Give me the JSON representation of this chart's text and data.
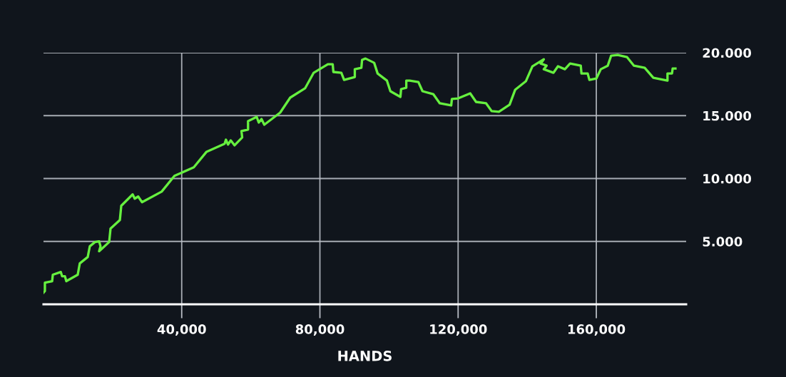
{
  "chart_data": {
    "type": "line",
    "xlabel": "HANDS",
    "xlim": [
      0,
      186000
    ],
    "xticks": [
      {
        "value": 40000,
        "label": "40,000"
      },
      {
        "value": 80000,
        "label": "80,000"
      },
      {
        "value": 120000,
        "label": "120,000"
      },
      {
        "value": 160000,
        "label": "160,000"
      }
    ],
    "ylim": [
      0,
      20
    ],
    "yticks": [
      {
        "value": 5,
        "label": "5.000"
      },
      {
        "value": 10,
        "label": "10.000"
      },
      {
        "value": 15,
        "label": "15.000"
      },
      {
        "value": 20,
        "label": "20.000"
      }
    ],
    "grid": true,
    "marker": "none",
    "line_style": "solid",
    "series": [
      {
        "color": "#66f03f",
        "x": [
          0,
          400,
          400,
          2500,
          2700,
          5000,
          5400,
          6200,
          6600,
          9900,
          10500,
          12800,
          13400,
          14900,
          16100,
          16500,
          16100,
          19000,
          19400,
          22100,
          22500,
          25800,
          26400,
          27400,
          28500,
          34200,
          37900,
          43500,
          47200,
          52400,
          52800,
          53400,
          54200,
          55300,
          57500,
          57300,
          59200,
          59200,
          61700,
          62300,
          63100,
          63900,
          68500,
          71400,
          75700,
          78200,
          82300,
          83700,
          83900,
          86200,
          87000,
          90100,
          90100,
          92000,
          92200,
          93200,
          95700,
          96700,
          99400,
          100400,
          103300,
          103500,
          105000,
          105000,
          106000,
          108500,
          109700,
          112800,
          114700,
          118000,
          118200,
          120000,
          123500,
          125200,
          128100,
          129700,
          131800,
          134900,
          136500,
          139600,
          141500,
          144800,
          143900,
          145600,
          144800,
          147600,
          148900,
          150900,
          152400,
          155500,
          155700,
          157500,
          158000,
          160000,
          161300,
          163300,
          164300,
          166200,
          168900,
          170900,
          174000,
          176500,
          180600,
          180600,
          181900,
          182100,
          182900
        ],
        "values": [
          0.93,
          1.05,
          1.72,
          1.84,
          2.35,
          2.57,
          2.23,
          2.23,
          1.84,
          2.35,
          3.25,
          3.76,
          4.61,
          4.95,
          5.01,
          4.61,
          4.22,
          4.95,
          6.02,
          6.7,
          7.83,
          8.74,
          8.4,
          8.57,
          8.12,
          8.96,
          10.21,
          10.89,
          12.13,
          12.76,
          13.09,
          12.7,
          13.03,
          12.64,
          13.26,
          13.77,
          13.89,
          14.56,
          14.9,
          14.45,
          14.73,
          14.28,
          15.24,
          16.43,
          17.17,
          18.41,
          19.09,
          19.09,
          18.47,
          18.41,
          17.84,
          18.07,
          18.69,
          18.8,
          19.43,
          19.54,
          19.2,
          18.35,
          17.78,
          16.94,
          16.49,
          17.11,
          17.22,
          17.78,
          17.78,
          17.67,
          16.94,
          16.71,
          15.98,
          15.81,
          16.32,
          16.37,
          16.77,
          16.09,
          15.98,
          15.36,
          15.3,
          15.87,
          17.05,
          17.73,
          18.92,
          19.48,
          19.14,
          18.97,
          18.69,
          18.41,
          18.92,
          18.69,
          19.14,
          18.97,
          18.35,
          18.35,
          17.84,
          17.95,
          18.69,
          18.97,
          19.77,
          19.82,
          19.65,
          18.97,
          18.8,
          18.01,
          17.78,
          18.35,
          18.35,
          18.75,
          18.75
        ]
      }
    ]
  }
}
